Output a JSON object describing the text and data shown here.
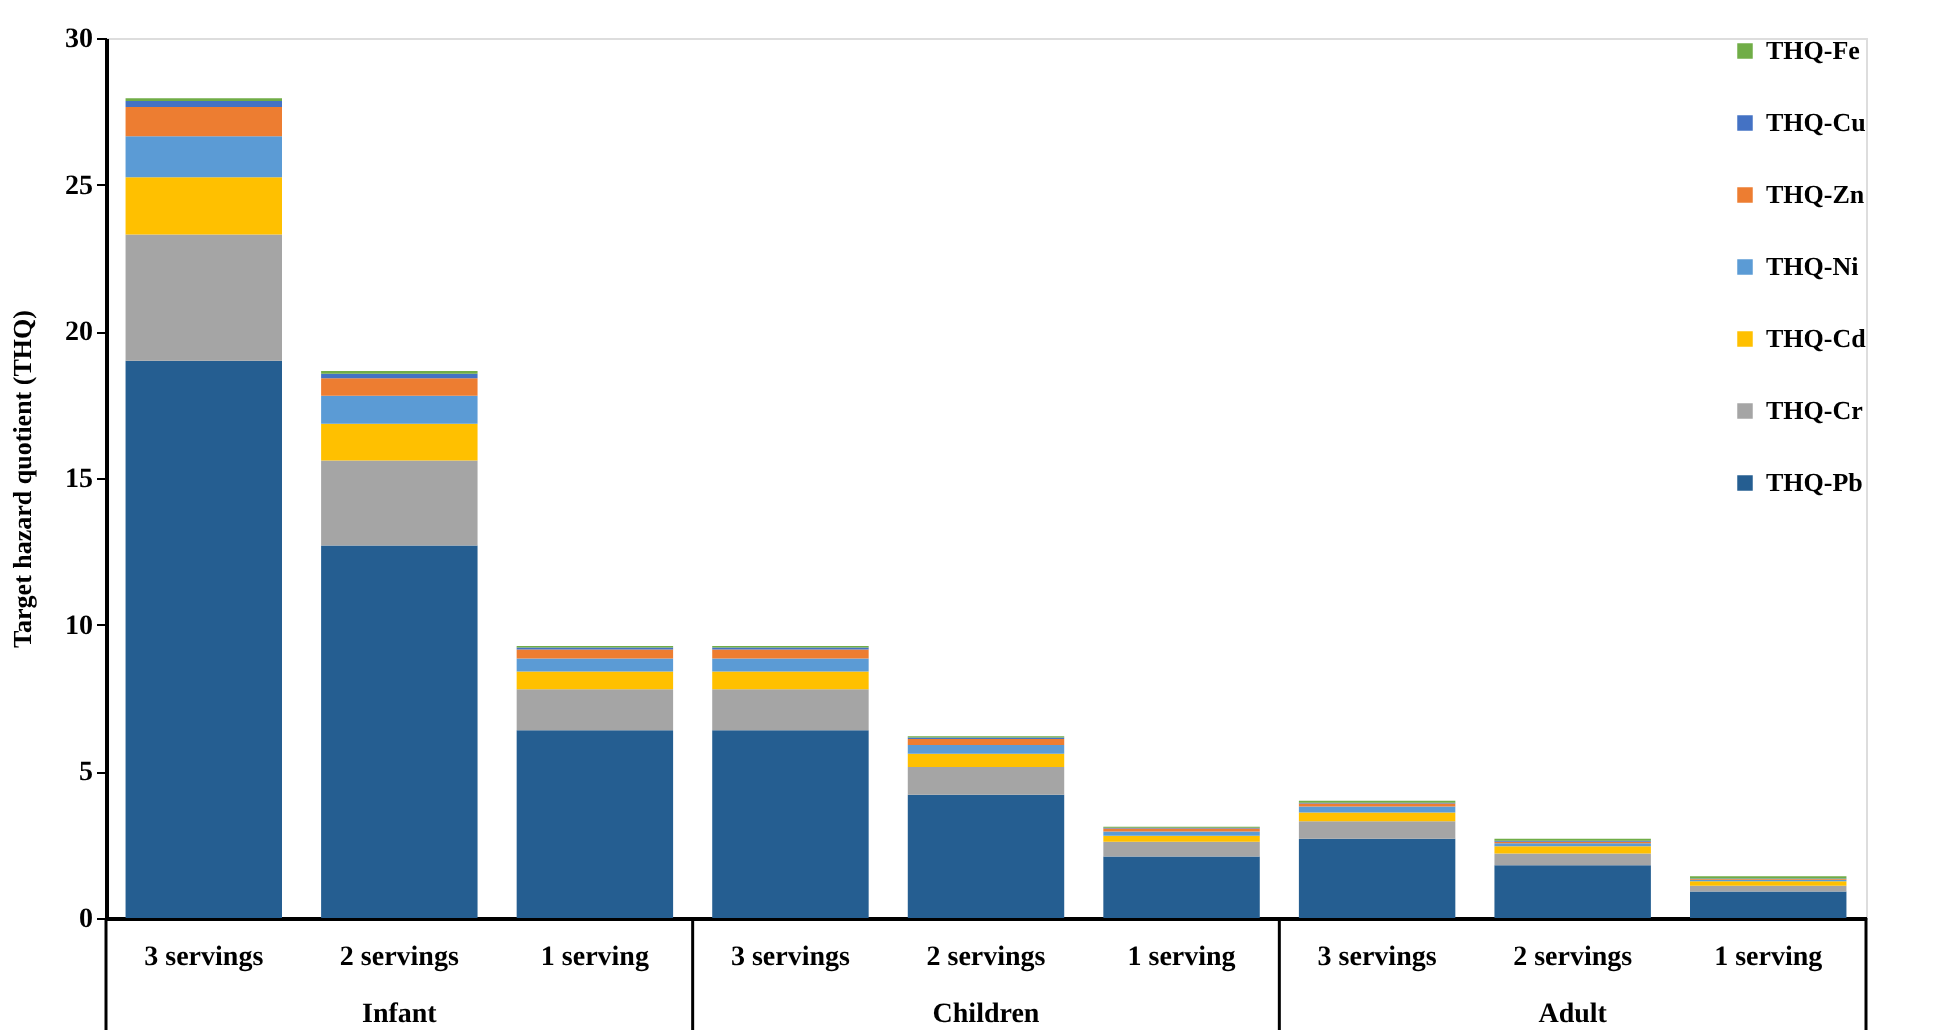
{
  "chart_data": {
    "type": "bar",
    "stacked": true,
    "ylabel": "Target hazard quotient (THQ)",
    "categories": [
      "3 servings",
      "2 servings",
      "1 serving",
      "3 servings",
      "2 servings",
      "1 serving",
      "3 servings",
      "2 servings",
      "1 serving"
    ],
    "annotations": [
      "Infant",
      "Children",
      "Adult"
    ],
    "series": [
      {
        "name": "THQ-Pb",
        "color": "#255e91",
        "values": [
          19.0,
          12.7,
          6.4,
          6.4,
          4.2,
          2.1,
          2.7,
          1.8,
          0.9
        ]
      },
      {
        "name": "THQ-Cr",
        "color": "#a5a5a5",
        "values": [
          4.3,
          2.9,
          1.4,
          1.4,
          0.95,
          0.5,
          0.6,
          0.4,
          0.2
        ]
      },
      {
        "name": "THQ-Cd",
        "color": "#ffc000",
        "values": [
          1.95,
          1.25,
          0.6,
          0.6,
          0.45,
          0.2,
          0.3,
          0.25,
          0.15
        ]
      },
      {
        "name": "THQ-Ni",
        "color": "#5b9bd5",
        "values": [
          1.4,
          0.95,
          0.45,
          0.45,
          0.3,
          0.15,
          0.2,
          0.1,
          0.05
        ]
      },
      {
        "name": "THQ-Zn",
        "color": "#ed7d31",
        "values": [
          1.0,
          0.6,
          0.3,
          0.3,
          0.2,
          0.1,
          0.1,
          0.05,
          0.03
        ]
      },
      {
        "name": "THQ-Cu",
        "color": "#4472c4",
        "values": [
          0.2,
          0.15,
          0.07,
          0.07,
          0.05,
          0.03,
          0.03,
          0.03,
          0.02
        ]
      },
      {
        "name": "THQ-Fe",
        "color": "#70ad47",
        "values": [
          0.1,
          0.1,
          0.05,
          0.05,
          0.05,
          0.03,
          0.07,
          0.07,
          0.07
        ]
      }
    ],
    "ylim": [
      0,
      30
    ],
    "yticks": [
      0,
      5,
      10,
      15,
      20,
      25,
      30
    ],
    "grid": false,
    "legend": "top right"
  }
}
